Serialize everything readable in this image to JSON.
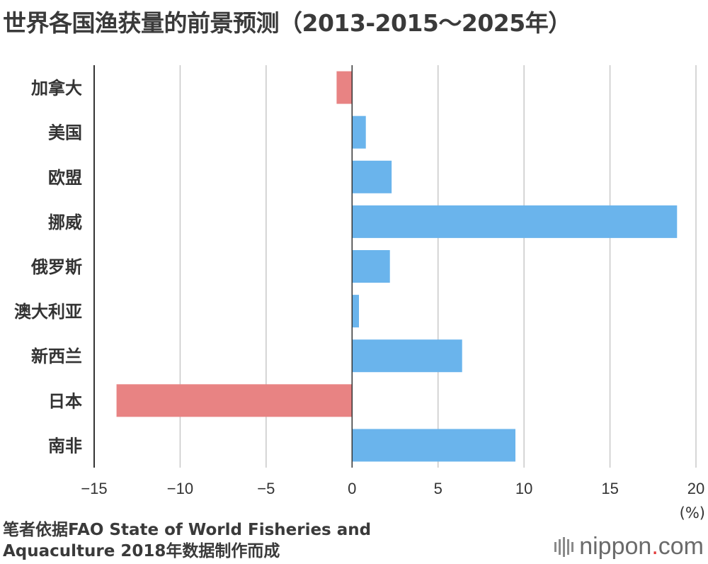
{
  "title": "世界各国渔获量的前景预测（2013-2015～2025年）",
  "unit_label": "(%)",
  "source_line1": "笔者依据FAO State of World Fisheries and",
  "source_line2": "Aquaculture 2018年数据制作而成",
  "brand": {
    "name": "nippon",
    "dot": ".",
    "suffix": "com"
  },
  "colors": {
    "positive": "#6ab4ec",
    "negative": "#e88383",
    "grid": "#c8c8c8",
    "axis": "#333333"
  },
  "chart_data": {
    "type": "bar",
    "orientation": "horizontal",
    "categories": [
      "加拿大",
      "美国",
      "欧盟",
      "挪威",
      "俄罗斯",
      "澳大利亚",
      "新西兰",
      "日本",
      "南非"
    ],
    "values": [
      -0.9,
      0.8,
      2.3,
      18.9,
      2.2,
      0.4,
      6.4,
      -13.7,
      9.5
    ],
    "xlim": [
      -15,
      20
    ],
    "ticks": [
      -15,
      -10,
      -5,
      0,
      5,
      10,
      15,
      20
    ],
    "tick_labels": [
      "−15",
      "−10",
      "−5",
      "0",
      "5",
      "10",
      "15",
      "20"
    ],
    "xlabel": "(%)",
    "grid": true
  }
}
